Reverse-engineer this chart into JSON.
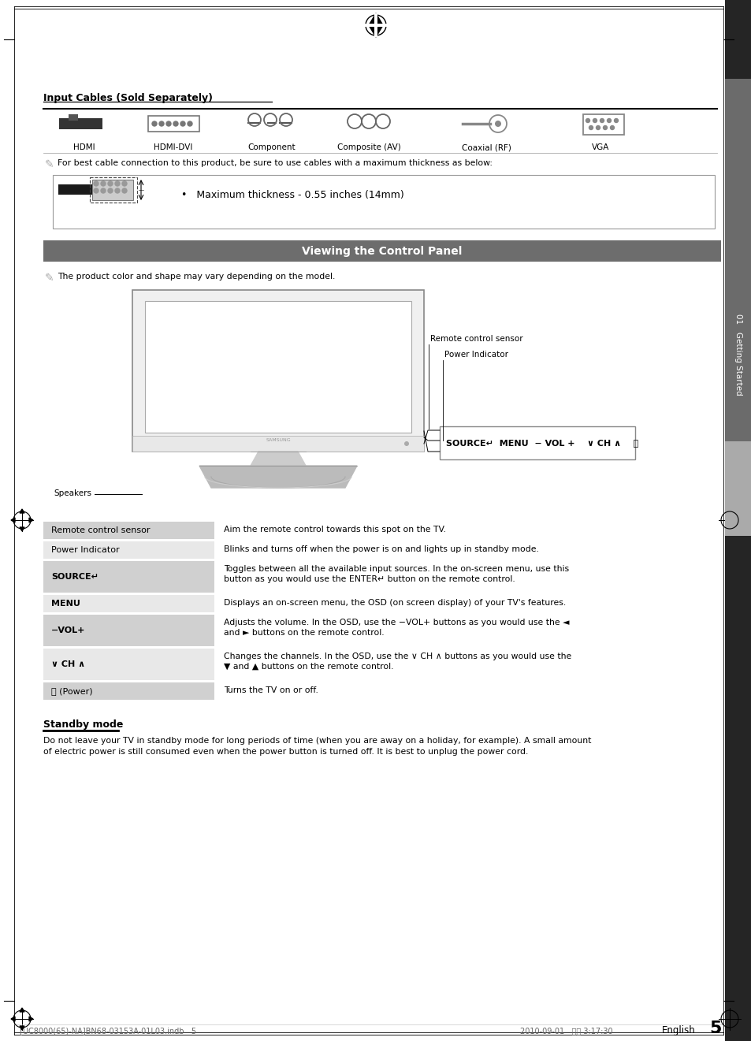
{
  "page_bg": "#ffffff",
  "page_width": 9.54,
  "page_height": 13.21,
  "title": "Viewing the Control Panel",
  "title_bg": "#6d6d6d",
  "title_color": "#ffffff",
  "section_input_cables": "Input Cables (Sold Separately)",
  "cable_labels": [
    "HDMI",
    "HDMI-DVI",
    "Component",
    "Composite (AV)",
    "Coaxial (RF)",
    "VGA"
  ],
  "note_cable": "For best cable connection to this product, be sure to use cables with a maximum thickness as below:",
  "max_thickness": "Maximum thickness - 0.55 inches (14mm)",
  "note_product": "The product color and shape may vary depending on the model.",
  "speaker_label": "Speakers",
  "remote_sensor_label": "Remote control sensor",
  "power_indicator_label": "Power Indicator",
  "table_rows": [
    {
      "label": "Remote control sensor",
      "label_bold": false,
      "bg": "#d0d0d0",
      "desc": "Aim the remote control towards this spot on the TV.",
      "desc2": ""
    },
    {
      "label": "Power Indicator",
      "label_bold": false,
      "bg": "#e8e8e8",
      "desc": "Blinks and turns off when the power is on and lights up in standby mode.",
      "desc2": ""
    },
    {
      "label": "SOURCE↵",
      "label_bold": true,
      "bg": "#d0d0d0",
      "desc": "Toggles between all the available input sources. In the on-screen menu, use this",
      "desc2": "button as you would use the ENTER↵ button on the remote control."
    },
    {
      "label": "MENU",
      "label_bold": true,
      "bg": "#e8e8e8",
      "desc": "Displays an on-screen menu, the OSD (on screen display) of your TV's features.",
      "desc2": ""
    },
    {
      "label": "−VOL+",
      "label_bold": true,
      "bg": "#d0d0d0",
      "desc": "Adjusts the volume. In the OSD, use the −VOL+ buttons as you would use the ◄",
      "desc2": "and ► buttons on the remote control."
    },
    {
      "label": "∨ CH ∧",
      "label_bold": true,
      "bg": "#e8e8e8",
      "desc": "Changes the channels. In the OSD, use the ∨ CH ∧ buttons as you would use the",
      "desc2": "▼ and ▲ buttons on the remote control."
    },
    {
      "label": "⏻ (Power)",
      "label_bold": false,
      "bg": "#d0d0d0",
      "desc": "Turns the TV on or off.",
      "desc2": ""
    }
  ],
  "standby_title": "Standby mode",
  "standby_text1": "Do not leave your TV in standby mode for long periods of time (when you are away on a holiday, for example). A small amount",
  "standby_text2": "of electric power is still consumed even when the power button is turned off. It is best to unplug the power cord.",
  "footer_left": "[UC8000(65)-NA]BN68-03153A-01L03.indb   5",
  "footer_right": "2010-09-01   오후 3:17:30",
  "page_number": "5",
  "english_label": "English",
  "sidebar_text": "01   Getting Started",
  "sidebar_dark": "#252525",
  "sidebar_mid": "#6b6b6b",
  "sidebar_light": "#aaaaaa"
}
